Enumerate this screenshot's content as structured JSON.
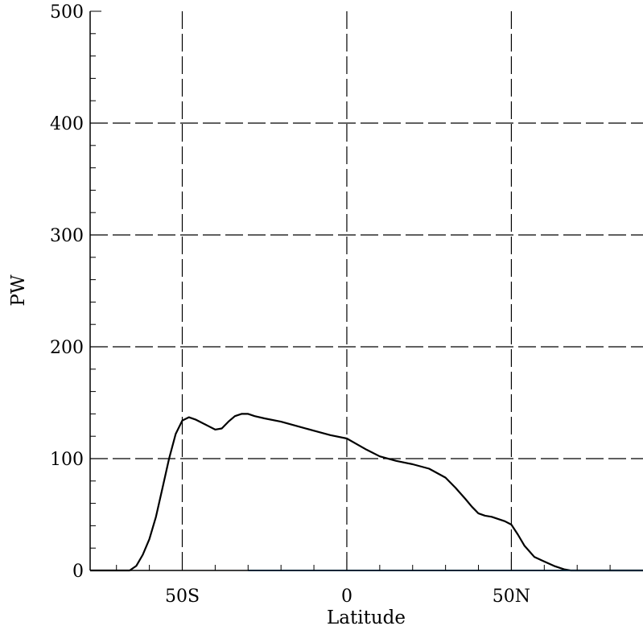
{
  "chart_data": {
    "type": "line",
    "title": "",
    "xlabel": "Latitude",
    "ylabel": "PW",
    "xlim": [
      -78,
      90
    ],
    "ylim": [
      0,
      500
    ],
    "x_ticks": [
      {
        "value": -50,
        "label": "50S"
      },
      {
        "value": 0,
        "label": "0"
      },
      {
        "value": 50,
        "label": "50N"
      }
    ],
    "y_ticks": [
      {
        "value": 0,
        "label": "0"
      },
      {
        "value": 100,
        "label": "100"
      },
      {
        "value": 200,
        "label": "200"
      },
      {
        "value": 300,
        "label": "300"
      },
      {
        "value": 400,
        "label": "400"
      },
      {
        "value": 500,
        "label": "500"
      }
    ],
    "grid": true,
    "legend": "none",
    "series": [
      {
        "color": "#000000",
        "x": [
          -78,
          -73,
          -69,
          -66,
          -64,
          -62,
          -60,
          -58,
          -56,
          -54,
          -52,
          -50,
          -48,
          -46,
          -44,
          -42,
          -40,
          -38,
          -36,
          -34,
          -32,
          -30,
          -28,
          -25,
          -20,
          -15,
          -10,
          -5,
          0,
          3,
          6,
          10,
          15,
          20,
          25,
          30,
          33,
          36,
          38,
          40,
          42,
          44,
          46,
          48,
          50,
          52,
          54,
          57,
          60,
          63,
          66,
          68,
          70,
          72,
          75,
          78,
          82,
          86,
          90
        ],
        "y": [
          0,
          0,
          0,
          0,
          4,
          14,
          28,
          48,
          74,
          100,
          122,
          134,
          137,
          135,
          132,
          129,
          126,
          127,
          133,
          138,
          140,
          140,
          138,
          136,
          133,
          129,
          125,
          121,
          118,
          113,
          108,
          102,
          98,
          95,
          91,
          83,
          74,
          64,
          57,
          51,
          49,
          48,
          46,
          44,
          41,
          32,
          22,
          12,
          8,
          4,
          1,
          0,
          0,
          0,
          0,
          0,
          0,
          0,
          0
        ]
      },
      {
        "color": "#1a8fd6",
        "x": [
          -30,
          90
        ],
        "y": [
          0,
          0
        ]
      }
    ]
  }
}
